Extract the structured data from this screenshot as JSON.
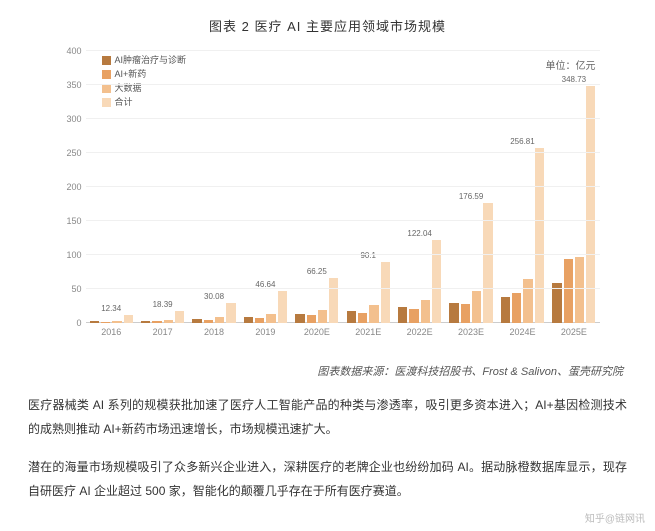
{
  "title": "图表 2 医疗 AI 主要应用领域市场规模",
  "unit": "单位：亿元",
  "legend": [
    {
      "label": "AI肿瘤治疗与诊断",
      "color": "#b77a3f"
    },
    {
      "label": "AI+新药",
      "color": "#e8a163"
    },
    {
      "label": "大数据",
      "color": "#f3c08e"
    },
    {
      "label": "合计",
      "color": "#f8d9b8"
    }
  ],
  "chart": {
    "type": "bar",
    "ylim": [
      0,
      400
    ],
    "ytick_step": 50,
    "background_color": "#ffffff",
    "grid_color": "#f0f0f0",
    "axis_text_color": "#888888",
    "label_fontsize": 9,
    "value_label_fontsize": 8,
    "bar_colors": [
      "#b77a3f",
      "#e8a163",
      "#f3c08e",
      "#f8d9b8"
    ],
    "categories": [
      "2016",
      "2017",
      "2018",
      "2019",
      "2020E",
      "2021E",
      "2022E",
      "2023E",
      "2024E",
      "2025E"
    ],
    "series": [
      [
        2.3,
        3.4,
        5.7,
        8.8,
        12.8,
        17.4,
        23.4,
        29.8,
        37.8,
        58.4
      ],
      [
        2.1,
        3.2,
        5.1,
        8.0,
        11.2,
        15.3,
        20.4,
        28.2,
        44.6,
        94.3
      ],
      [
        3.2,
        4.9,
        8.3,
        12.6,
        18.8,
        26.1,
        33.8,
        47.5,
        65.2,
        96.4
      ],
      [
        12.34,
        18.39,
        30.08,
        46.64,
        66.25,
        90.1,
        122.04,
        176.59,
        256.81,
        348.73
      ]
    ],
    "value_labels": [
      "12.34",
      "18.39",
      "30.08",
      "46.64",
      "66.25",
      "90.1",
      "122.04",
      "176.59",
      "256.81",
      "348.73"
    ]
  },
  "source": "图表数据来源：医渡科技招股书、Frost & Salivon、蛋壳研究院",
  "para1": "医疗器械类 AI 系列的规模获批加速了医疗人工智能产品的种类与渗透率，吸引更多资本进入；AI+基因检测技术的成熟则推动 AI+新药市场迅速增长，市场规模迅速扩大。",
  "para2": "潜在的海量市场规模吸引了众多新兴企业进入，深耕医疗的老牌企业也纷纷加码 AI。据动脉橙数据库显示，现存自研医疗 AI 企业超过 500 家，智能化的颠覆几乎存在于所有医疗赛道。",
  "watermark": "知乎@链网讯"
}
